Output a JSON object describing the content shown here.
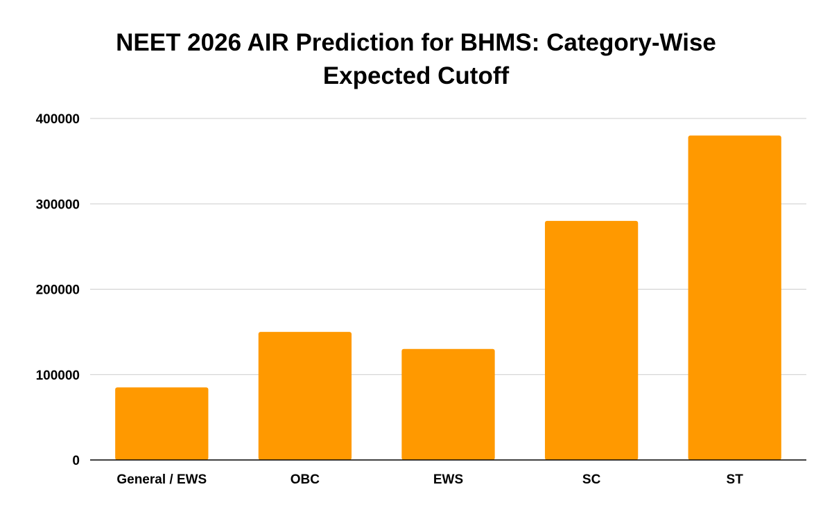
{
  "chart_data": {
    "type": "bar",
    "title_lines": [
      "NEET 2026 AIR Prediction for BHMS: Category-Wise",
      "Expected Cutoff"
    ],
    "categories": [
      "General / EWS",
      "OBC",
      "EWS",
      "SC",
      "ST"
    ],
    "values": [
      85000,
      150000,
      130000,
      280000,
      380000
    ],
    "ylim": [
      0,
      400000
    ],
    "yticks": [
      "0",
      "100000",
      "200000",
      "300000",
      "400000"
    ],
    "xlabel": "",
    "ylabel": "",
    "grid": true,
    "legend": "none",
    "colors": {
      "bar": "#ff9900",
      "grid": "#cccccc",
      "axis": "#000000"
    }
  }
}
